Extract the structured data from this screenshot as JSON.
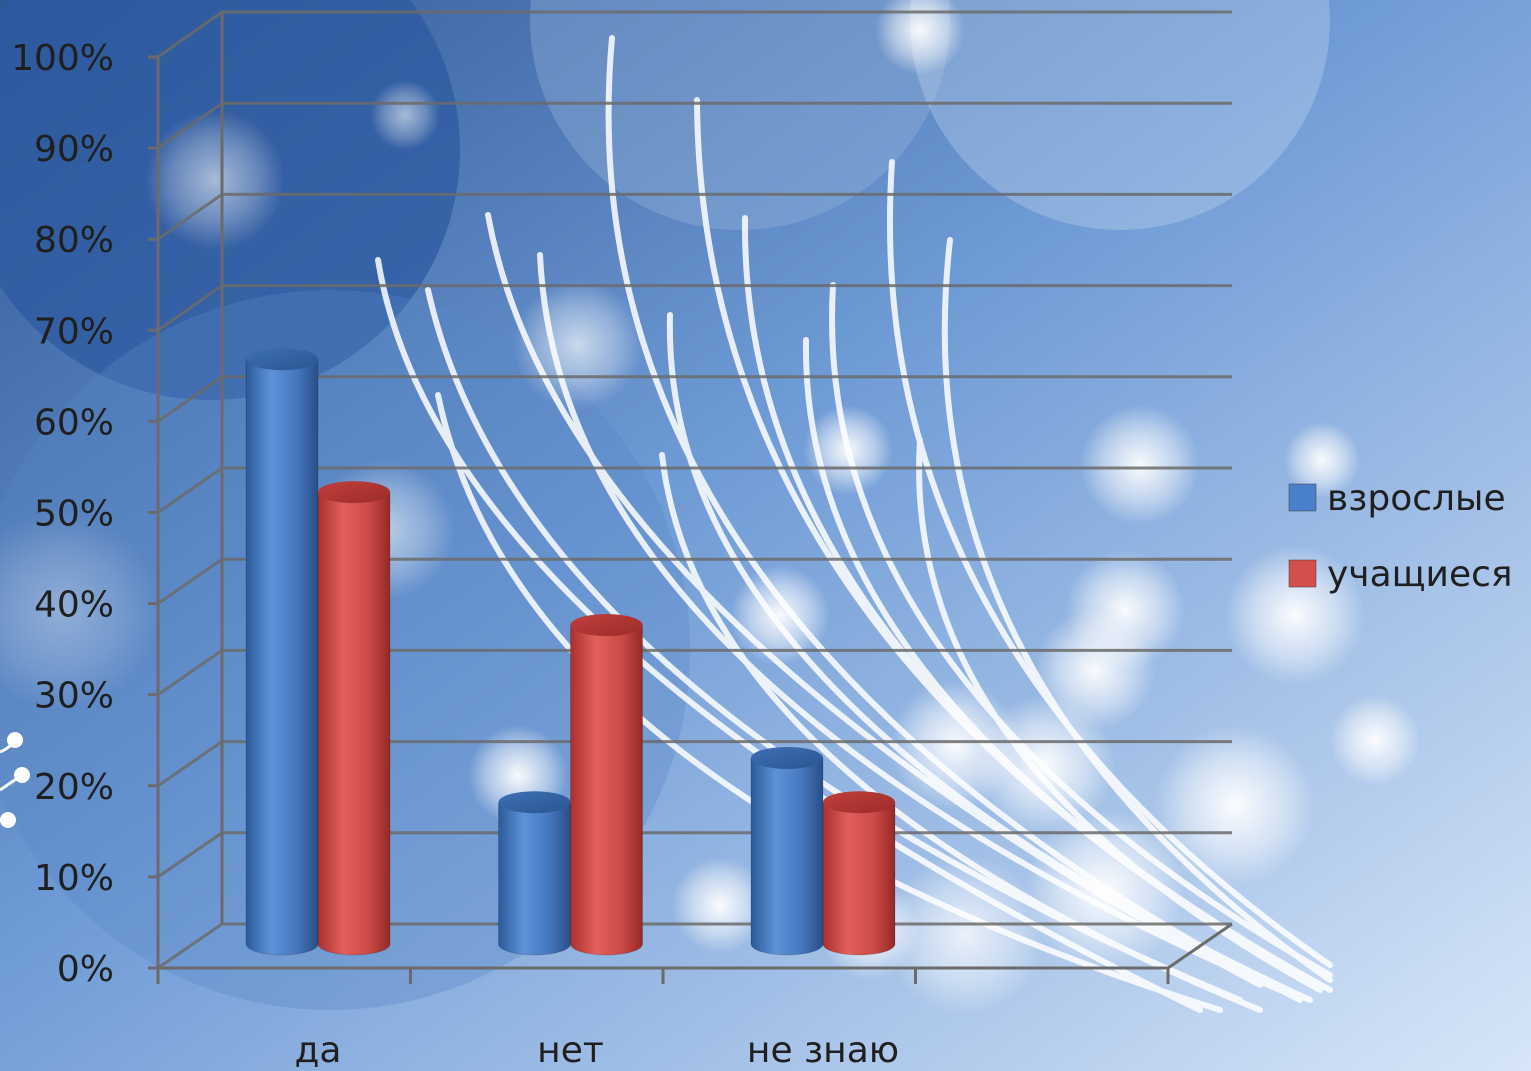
{
  "chart_data": {
    "type": "bar",
    "categories": [
      "да",
      "нет",
      "не знаю"
    ],
    "series": [
      {
        "name": "взрослые",
        "values": [
          66,
          16,
          21
        ],
        "color": "#4a7fc9"
      },
      {
        "name": "учащиеся",
        "values": [
          51,
          36,
          16
        ],
        "color": "#d2504c"
      }
    ],
    "y_ticks": [
      "0%",
      "10%",
      "20%",
      "30%",
      "40%",
      "50%",
      "60%",
      "70%",
      "80%",
      "90%",
      "100%"
    ],
    "ylim": [
      0,
      100
    ],
    "grid": true,
    "legend_position": "right",
    "style": "3d-cylinder"
  }
}
